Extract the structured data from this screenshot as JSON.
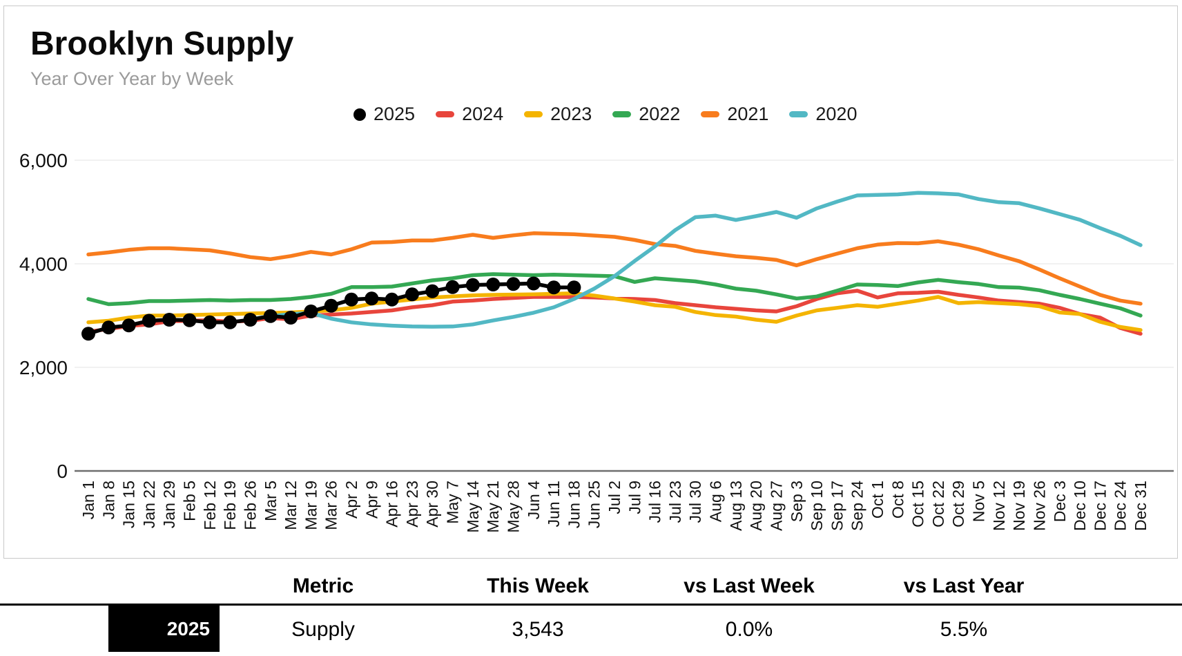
{
  "header": {
    "title": "Brooklyn Supply",
    "subtitle": "Year Over Year by Week"
  },
  "legend": [
    {
      "label": "2025",
      "color": "#000000",
      "shape": "circle"
    },
    {
      "label": "2024",
      "color": "#E8453C",
      "shape": "dash"
    },
    {
      "label": "2023",
      "color": "#F4B400",
      "shape": "dash"
    },
    {
      "label": "2022",
      "color": "#34A853",
      "shape": "dash"
    },
    {
      "label": "2021",
      "color": "#F87C1D",
      "shape": "dash"
    },
    {
      "label": "2020",
      "color": "#52B8C4",
      "shape": "dash"
    }
  ],
  "chart_data": {
    "type": "line",
    "title": "Brooklyn Supply",
    "subtitle": "Year Over Year by Week",
    "grid": "horizontal",
    "legend_position": "top",
    "ylim": [
      0,
      6000
    ],
    "y_ticks": [
      0,
      2000,
      4000,
      6000
    ],
    "y_tick_labels": [
      "0",
      "2,000",
      "4,000",
      "6,000"
    ],
    "x_labels": [
      "Jan 1",
      "Jan 8",
      "Jan 15",
      "Jan 22",
      "Jan 29",
      "Feb 5",
      "Feb 12",
      "Feb 19",
      "Feb 26",
      "Mar 5",
      "Mar 12",
      "Mar 19",
      "Mar 26",
      "Apr 2",
      "Apr 9",
      "Apr 16",
      "Apr 23",
      "Apr 30",
      "May 7",
      "May 14",
      "May 21",
      "May 28",
      "Jun 4",
      "Jun 11",
      "Jun 18",
      "Jun 25",
      "Jul 2",
      "Jul 9",
      "Jul 16",
      "Jul 23",
      "Jul 30",
      "Aug 6",
      "Aug 13",
      "Aug 20",
      "Aug 27",
      "Sep 3",
      "Sep 10",
      "Sep 17",
      "Sep 24",
      "Oct 1",
      "Oct 8",
      "Oct 15",
      "Oct 22",
      "Oct 29",
      "Nov 5",
      "Nov 12",
      "Nov 19",
      "Nov 26",
      "Dec 3",
      "Dec 10",
      "Dec 17",
      "Dec 24",
      "Dec 31"
    ],
    "series": [
      {
        "name": "2025",
        "color": "#000000",
        "marker": "circle",
        "values": [
          2650,
          2770,
          2810,
          2900,
          2920,
          2910,
          2870,
          2870,
          2920,
          2990,
          2960,
          3080,
          3190,
          3310,
          3330,
          3310,
          3410,
          3470,
          3550,
          3590,
          3600,
          3610,
          3620,
          3543,
          3543,
          null,
          null,
          null,
          null,
          null,
          null,
          null,
          null,
          null,
          null,
          null,
          null,
          null,
          null,
          null,
          null,
          null,
          null,
          null,
          null,
          null,
          null,
          null,
          null,
          null,
          null,
          null,
          null
        ]
      },
      {
        "name": "2024",
        "color": "#E8453C",
        "values": [
          2690,
          2740,
          2800,
          2830,
          2890,
          2900,
          2910,
          2880,
          2900,
          2950,
          2930,
          3000,
          3020,
          3040,
          3070,
          3100,
          3160,
          3200,
          3270,
          3290,
          3320,
          3340,
          3360,
          3360,
          3358,
          3350,
          3330,
          3320,
          3300,
          3240,
          3200,
          3160,
          3130,
          3100,
          3080,
          3180,
          3320,
          3430,
          3480,
          3350,
          3430,
          3440,
          3460,
          3400,
          3350,
          3290,
          3260,
          3230,
          3150,
          3030,
          2960,
          2760,
          2650
        ]
      },
      {
        "name": "2023",
        "color": "#F4B400",
        "values": [
          2870,
          2900,
          2960,
          3000,
          3000,
          3010,
          3020,
          3030,
          3040,
          3050,
          3060,
          3080,
          3100,
          3150,
          3230,
          3270,
          3310,
          3350,
          3370,
          3390,
          3400,
          3405,
          3410,
          3420,
          3430,
          3385,
          3330,
          3270,
          3200,
          3170,
          3070,
          3010,
          2980,
          2920,
          2880,
          3000,
          3100,
          3150,
          3200,
          3170,
          3230,
          3290,
          3360,
          3240,
          3260,
          3240,
          3220,
          3180,
          3060,
          3030,
          2880,
          2780,
          2720
        ]
      },
      {
        "name": "2022",
        "color": "#34A853",
        "values": [
          3320,
          3220,
          3240,
          3280,
          3280,
          3290,
          3300,
          3290,
          3300,
          3300,
          3320,
          3360,
          3420,
          3550,
          3550,
          3560,
          3620,
          3680,
          3720,
          3780,
          3800,
          3790,
          3780,
          3790,
          3780,
          3770,
          3760,
          3650,
          3720,
          3690,
          3660,
          3600,
          3520,
          3480,
          3410,
          3330,
          3370,
          3480,
          3600,
          3590,
          3570,
          3640,
          3690,
          3645,
          3610,
          3550,
          3540,
          3490,
          3400,
          3320,
          3230,
          3140,
          3000
        ]
      },
      {
        "name": "2021",
        "color": "#F87C1D",
        "values": [
          4180,
          4220,
          4270,
          4300,
          4300,
          4280,
          4260,
          4200,
          4130,
          4090,
          4150,
          4230,
          4180,
          4280,
          4410,
          4420,
          4450,
          4450,
          4500,
          4560,
          4500,
          4550,
          4590,
          4580,
          4570,
          4545,
          4520,
          4460,
          4380,
          4345,
          4250,
          4195,
          4145,
          4115,
          4075,
          3970,
          4090,
          4195,
          4300,
          4370,
          4400,
          4395,
          4435,
          4370,
          4280,
          4160,
          4050,
          3890,
          3720,
          3560,
          3400,
          3290,
          3230
        ]
      },
      {
        "name": "2020",
        "color": "#52B8C4",
        "values": [
          null,
          null,
          null,
          null,
          null,
          null,
          null,
          null,
          2930,
          2990,
          3030,
          3050,
          2940,
          2870,
          2830,
          2805,
          2790,
          2785,
          2790,
          2830,
          2905,
          2975,
          3055,
          3160,
          3320,
          3520,
          3760,
          4055,
          4335,
          4650,
          4900,
          4930,
          4845,
          4920,
          5000,
          4890,
          5070,
          5200,
          5320,
          5330,
          5340,
          5370,
          5360,
          5340,
          5250,
          5190,
          5170,
          5070,
          4960,
          4850,
          4690,
          4540,
          4360
        ]
      }
    ]
  },
  "table": {
    "headers": [
      "Metric",
      "This Week",
      "vs Last Week",
      "vs Last Year"
    ],
    "rows": [
      {
        "year": "2025",
        "year_bg": "#000000",
        "metric": "Supply",
        "this_week": "3,543",
        "vs_last_week": "0.0%",
        "vs_last_year": "5.5%"
      }
    ]
  }
}
